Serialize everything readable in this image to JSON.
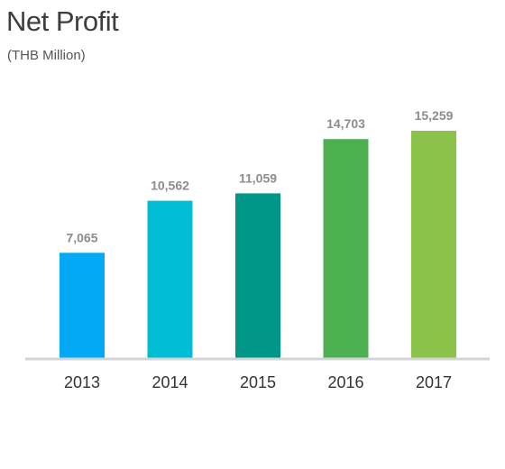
{
  "chart_data": {
    "type": "bar",
    "title": "Net Profit",
    "subtitle": "(THB Million)",
    "xlabel": "",
    "ylabel": "",
    "categories": [
      "2013",
      "2014",
      "2015",
      "2016",
      "2017"
    ],
    "values": [
      7065,
      10562,
      11059,
      14703,
      15259
    ],
    "value_labels": [
      "7,065",
      "10,562",
      "11,059",
      "14,703",
      "15,259"
    ],
    "bar_colors": [
      "#03a9f4",
      "#00bcd4",
      "#009688",
      "#4caf50",
      "#8bc34a"
    ],
    "axis_color": "#d4d4d4",
    "grid": false,
    "legend": "none"
  }
}
